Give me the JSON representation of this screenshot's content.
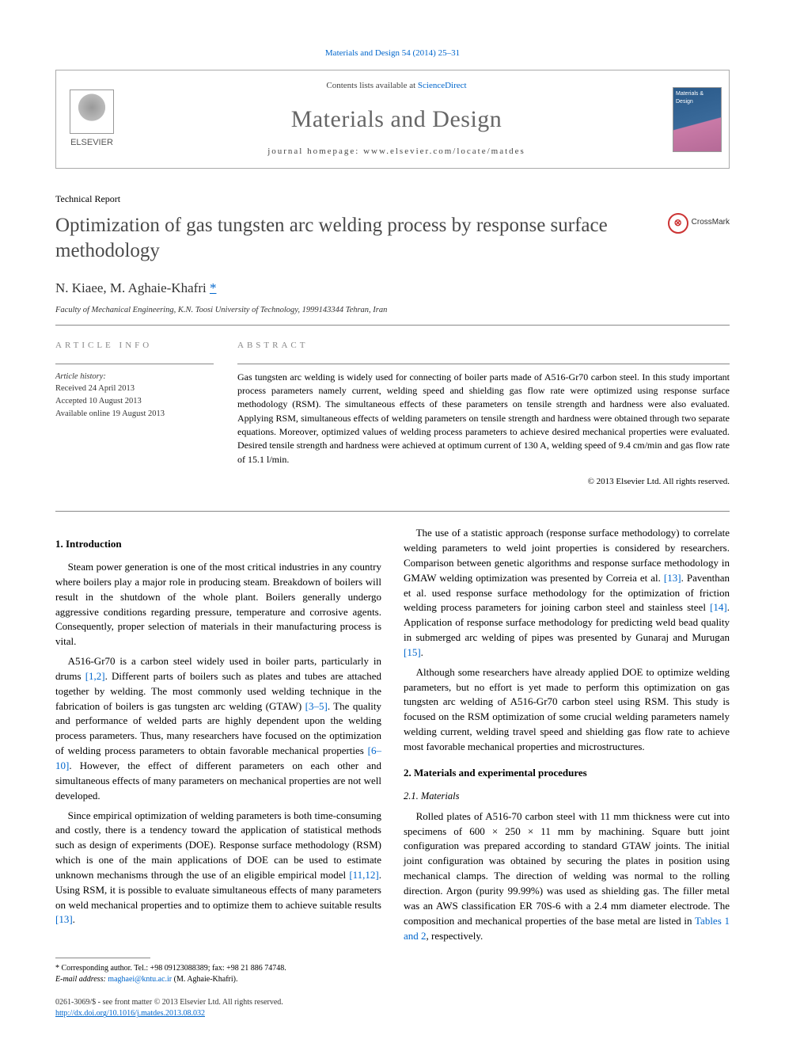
{
  "citation": "Materials and Design 54 (2014) 25–31",
  "header": {
    "contents_prefix": "Contents lists available at ",
    "contents_link": "ScienceDirect",
    "journal": "Materials and Design",
    "homepage_prefix": "journal homepage: ",
    "homepage": "www.elsevier.com/locate/matdes",
    "publisher": "ELSEVIER",
    "cover_text": "Materials & Design"
  },
  "article_type": "Technical Report",
  "title": "Optimization of gas tungsten arc welding process by response surface methodology",
  "crossmark": "CrossMark",
  "authors": "N. Kiaee, M. Aghaie-Khafri",
  "corr_mark": "*",
  "affiliation": "Faculty of Mechanical Engineering, K.N. Toosi University of Technology, 1999143344 Tehran, Iran",
  "article_info": {
    "heading": "ARTICLE INFO",
    "history_label": "Article history:",
    "received": "Received 24 April 2013",
    "accepted": "Accepted 10 August 2013",
    "online": "Available online 19 August 2013"
  },
  "abstract": {
    "heading": "ABSTRACT",
    "text": "Gas tungsten arc welding is widely used for connecting of boiler parts made of A516-Gr70 carbon steel. In this study important process parameters namely current, welding speed and shielding gas flow rate were optimized using response surface methodology (RSM). The simultaneous effects of these parameters on tensile strength and hardness were also evaluated. Applying RSM, simultaneous effects of welding parameters on tensile strength and hardness were obtained through two separate equations. Moreover, optimized values of welding process parameters to achieve desired mechanical properties were evaluated. Desired tensile strength and hardness were achieved at optimum current of 130 A, welding speed of 9.4 cm/min and gas flow rate of 15.1 l/min.",
    "copyright": "© 2013 Elsevier Ltd. All rights reserved."
  },
  "sections": {
    "intro_heading": "1. Introduction",
    "intro_p1": "Steam power generation is one of the most critical industries in any country where boilers play a major role in producing steam. Breakdown of boilers will result in the shutdown of the whole plant. Boilers generally undergo aggressive conditions regarding pressure, temperature and corrosive agents. Consequently, proper selection of materials in their manufacturing process is vital.",
    "intro_p2a": "A516-Gr70 is a carbon steel widely used in boiler parts, particularly in drums ",
    "ref_1_2": "[1,2]",
    "intro_p2b": ". Different parts of boilers such as plates and tubes are attached together by welding. The most commonly used welding technique in the fabrication of boilers is gas tungsten arc welding (GTAW) ",
    "ref_3_5": "[3–5]",
    "intro_p2c": ". The quality and performance of welded parts are highly dependent upon the welding process parameters. Thus, many researchers have focused on the optimization of welding process parameters to obtain favorable mechanical properties ",
    "ref_6_10": "[6–10]",
    "intro_p2d": ". However, the effect of different parameters on each other and simultaneous effects of many parameters on mechanical properties are not well developed.",
    "intro_p3a": "Since empirical optimization of welding parameters is both time-consuming and costly, there is a tendency toward the application of statistical methods such as design of experiments (DOE). Response surface methodology (RSM) which is one of the main applications of DOE can be used to estimate unknown mechanisms through the use of an eligible empirical model ",
    "ref_11_12": "[11,12]",
    "intro_p3b": ". Using RSM, it is possible to evaluate simultaneous effects of many parameters on weld mechanical properties and to optimize them to achieve suitable results ",
    "ref_13a": "[13]",
    "intro_p3c": ".",
    "intro_p4a": "The use of a statistic approach (response surface methodology) to correlate welding parameters to weld joint properties is considered by researchers. Comparison between genetic algorithms and response surface methodology in GMAW welding optimization was presented by Correia et al. ",
    "ref_13b": "[13]",
    "intro_p4b": ". Paventhan et al. used response surface methodology for the optimization of friction welding process parameters for joining carbon steel and stainless steel ",
    "ref_14": "[14]",
    "intro_p4c": ". Application of response surface methodology for predicting weld bead quality in submerged arc welding of pipes was presented by Gunaraj and Murugan ",
    "ref_15": "[15]",
    "intro_p4d": ".",
    "intro_p5": "Although some researchers have already applied DOE to optimize welding parameters, but no effort is yet made to perform this optimization on gas tungsten arc welding of A516-Gr70 carbon steel using RSM. This study is focused on the RSM optimization of some crucial welding parameters namely welding current, welding travel speed and shielding gas flow rate to achieve most favorable mechanical properties and microstructures.",
    "materials_heading": "2. Materials and experimental procedures",
    "materials_sub": "2.1. Materials",
    "materials_p1a": "Rolled plates of A516-70 carbon steel with 11 mm thickness were cut into specimens of 600 × 250 × 11 mm by machining. Square butt joint configuration was prepared according to standard GTAW joints. The initial joint configuration was obtained by securing the plates in position using mechanical clamps. The direction of welding was normal to the rolling direction. Argon (purity 99.99%) was used as shielding gas. The filler metal was an AWS classification ER 70S-6 with a 2.4 mm diameter electrode. The composition and mechanical properties of the base metal are listed in ",
    "ref_tables": "Tables 1 and 2",
    "materials_p1b": ", respectively."
  },
  "footnote": {
    "corr": "* Corresponding author. Tel.: +98 09123088389; fax: +98 21 886 74748.",
    "email_label": "E-mail address:",
    "email": "maghaei@kntu.ac.ir",
    "email_name": "(M. Aghaie-Khafri)."
  },
  "footer": {
    "issn": "0261-3069/$ - see front matter © 2013 Elsevier Ltd. All rights reserved.",
    "doi": "http://dx.doi.org/10.1016/j.matdes.2013.08.032"
  },
  "colors": {
    "link": "#0066cc",
    "heading_gray": "#666",
    "rule": "#888"
  }
}
